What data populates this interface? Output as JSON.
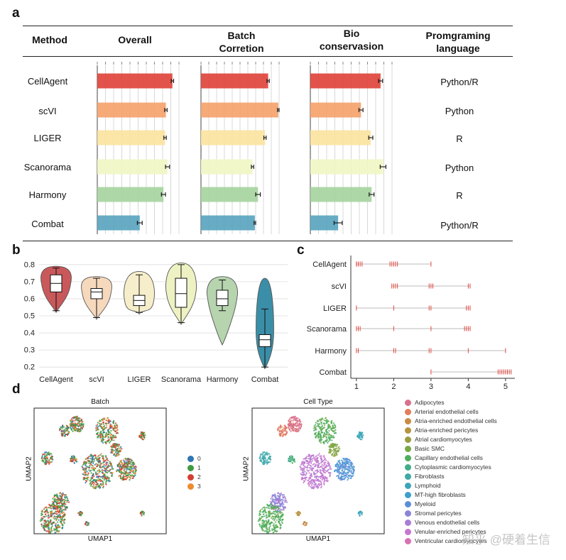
{
  "panels": {
    "a": "a",
    "b": "b",
    "c": "c",
    "d": "d"
  },
  "table": {
    "headers": {
      "method": "Method",
      "overall": "Overall",
      "batch_l1": "Batch",
      "batch_l2": "Corretion",
      "bio_l1": "Bio",
      "bio_l2": "conservasion",
      "lang_l1": "Promgraming",
      "lang_l2": "language"
    },
    "rows": [
      {
        "method": "CellAgent",
        "language": "Python/R"
      },
      {
        "method": "scVI",
        "language": "Python"
      },
      {
        "method": "LIGER",
        "language": "R"
      },
      {
        "method": "Scanorama",
        "language": "Python"
      },
      {
        "method": "Harmony",
        "language": "R"
      },
      {
        "method": "Combat",
        "language": "Python/R"
      }
    ]
  },
  "chart_data": [
    {
      "type": "bar",
      "title": "Overall",
      "categories": [
        "CellAgent",
        "scVI",
        "LIGER",
        "Scanorama",
        "Harmony",
        "Combat"
      ],
      "values": [
        0.92,
        0.84,
        0.83,
        0.86,
        0.81,
        0.52
      ],
      "errors": [
        0.03,
        0.03,
        0.03,
        0.05,
        0.05,
        0.06
      ],
      "colors": [
        "#e0453c",
        "#f4a36c",
        "#fbe4a1",
        "#f1f6c4",
        "#a7d49f",
        "#5aa5bf"
      ],
      "xlim": [
        0,
        1
      ]
    },
    {
      "type": "bar",
      "title": "Batch Corretion",
      "categories": [
        "CellAgent",
        "scVI",
        "LIGER",
        "Scanorama",
        "Harmony",
        "Combat"
      ],
      "values": [
        0.86,
        0.99,
        0.82,
        0.66,
        0.73,
        0.69
      ],
      "errors": [
        0.03,
        0.02,
        0.03,
        0.03,
        0.06,
        0.02
      ],
      "colors": [
        "#e0453c",
        "#f4a36c",
        "#fbe4a1",
        "#f1f6c4",
        "#a7d49f",
        "#5aa5bf"
      ],
      "xlim": [
        0,
        1
      ]
    },
    {
      "type": "bar",
      "title": "Bio conservasion",
      "categories": [
        "CellAgent",
        "scVI",
        "LIGER",
        "Scanorama",
        "Harmony",
        "Combat"
      ],
      "values": [
        0.86,
        0.62,
        0.74,
        0.89,
        0.75,
        0.34
      ],
      "errors": [
        0.05,
        0.05,
        0.05,
        0.07,
        0.06,
        0.1
      ],
      "colors": [
        "#e0453c",
        "#f4a36c",
        "#fbe4a1",
        "#f1f6c4",
        "#a7d49f",
        "#5aa5bf"
      ],
      "xlim": [
        0,
        1
      ]
    },
    {
      "type": "violin",
      "categories": [
        "CellAgent",
        "scVI",
        "LIGER",
        "Scanorama",
        "Harmony",
        "Combat"
      ],
      "box": [
        {
          "min": 0.53,
          "q1": 0.64,
          "median": 0.69,
          "q3": 0.74,
          "max": 0.78
        },
        {
          "min": 0.49,
          "q1": 0.6,
          "median": 0.64,
          "q3": 0.66,
          "max": 0.72
        },
        {
          "min": 0.52,
          "q1": 0.56,
          "median": 0.59,
          "q3": 0.62,
          "max": 0.74
        },
        {
          "min": 0.46,
          "q1": 0.55,
          "median": 0.63,
          "q3": 0.72,
          "max": 0.8
        },
        {
          "min": 0.53,
          "q1": 0.56,
          "median": 0.6,
          "q3": 0.65,
          "max": 0.71
        },
        {
          "min": 0.2,
          "q1": 0.32,
          "median": 0.36,
          "q3": 0.39,
          "max": 0.54
        }
      ],
      "violin": [
        {
          "lo": 0.52,
          "hi": 0.79
        },
        {
          "lo": 0.48,
          "hi": 0.73
        },
        {
          "lo": 0.51,
          "hi": 0.76
        },
        {
          "lo": 0.45,
          "hi": 0.81
        },
        {
          "lo": 0.33,
          "hi": 0.73
        },
        {
          "lo": 0.19,
          "hi": 0.72
        }
      ],
      "colors": [
        "#c9585a",
        "#f6d8bd",
        "#f6eecb",
        "#eef2c3",
        "#b6d4ae",
        "#3b8ea7"
      ],
      "yticks": [
        0.2,
        0.3,
        0.4,
        0.5,
        0.6,
        0.7,
        0.8
      ],
      "ylim": [
        0.18,
        0.82
      ]
    },
    {
      "type": "rank-strip",
      "categories": [
        "CellAgent",
        "scVI",
        "LIGER",
        "Scanorama",
        "Harmony",
        "Combat"
      ],
      "ranks": [
        [
          1,
          1,
          1.05,
          1.1,
          1.15,
          1.9,
          1.95,
          2,
          2.05,
          2.1,
          3
        ],
        [
          1.95,
          2,
          2.05,
          2.1,
          2.95,
          3,
          3.05,
          4,
          4.05
        ],
        [
          1,
          2,
          2.95,
          3,
          3.95,
          4,
          4.05
        ],
        [
          1,
          1.05,
          1.1,
          2,
          3,
          3.9,
          3.95,
          4,
          4.05
        ],
        [
          1,
          1.05,
          2,
          2.05,
          2.95,
          3,
          4,
          5
        ],
        [
          3,
          4.8,
          4.85,
          4.9,
          4.95,
          5,
          5.05,
          5.1,
          5.15
        ]
      ],
      "xticks": [
        1,
        2,
        3,
        4,
        5
      ],
      "xlim": [
        0.85,
        5.25
      ]
    }
  ],
  "umap": {
    "batch_title": "Batch",
    "celltype_title": "Cell Type",
    "xlabel": "UMAP1",
    "ylabel": "UMAP2",
    "batch_legend": [
      {
        "label": "0",
        "color": "#2f76b3"
      },
      {
        "label": "1",
        "color": "#3f9a3f"
      },
      {
        "label": "2",
        "color": "#d33d33"
      },
      {
        "label": "3",
        "color": "#ef8a2c"
      }
    ],
    "celltype_legend": [
      {
        "label": "Adipocytes",
        "color": "#d96f8e"
      },
      {
        "label": "Arterial endothelial cells",
        "color": "#e27d5a"
      },
      {
        "label": "Atria-enriched endothelial cells",
        "color": "#c98b45"
      },
      {
        "label": "Atria-enriched pericytes",
        "color": "#b59440"
      },
      {
        "label": "Atrial cardiomyocytes",
        "color": "#9a9b3e"
      },
      {
        "label": "Basic SMC",
        "color": "#7aa843"
      },
      {
        "label": "Capillary endothelial cells",
        "color": "#4fae5e"
      },
      {
        "label": "Cytoplasmic cardiomyocytes",
        "color": "#43ad8b"
      },
      {
        "label": "Fibroblasts",
        "color": "#3eaaa6"
      },
      {
        "label": "Lymphoid",
        "color": "#3ca6b9"
      },
      {
        "label": "MT-high fibroblasts",
        "color": "#3d9fcd"
      },
      {
        "label": "Myeloid",
        "color": "#5a8fd8"
      },
      {
        "label": "Stromal pericytes",
        "color": "#8b85d8"
      },
      {
        "label": "Venous endothelial cells",
        "color": "#a97dd6"
      },
      {
        "label": "Venular-enriched pericytes",
        "color": "#c577cf"
      },
      {
        "label": "Ventricular cardiomyocytes",
        "color": "#d872b3"
      }
    ]
  },
  "watermark": "知乎 @硬着生信"
}
